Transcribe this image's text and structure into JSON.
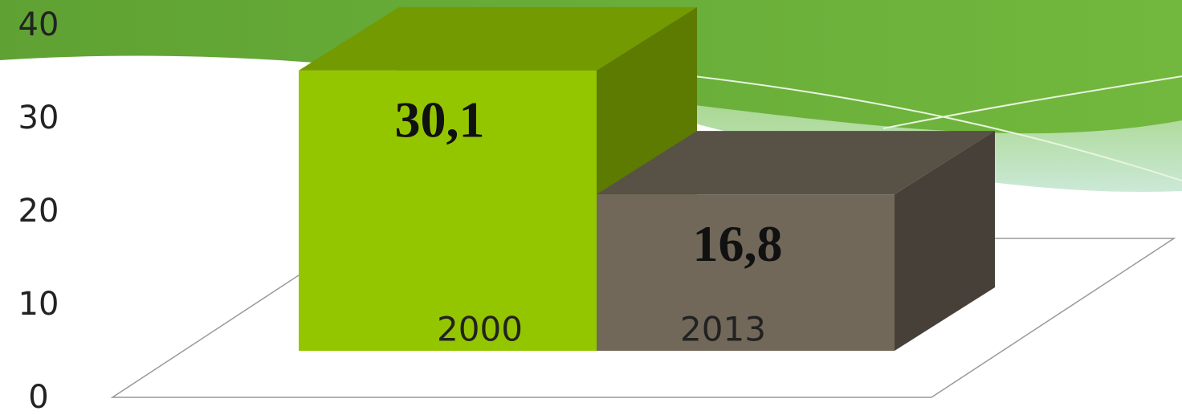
{
  "chart_data": {
    "type": "bar3d",
    "categories": [
      "2000",
      "2013"
    ],
    "values": [
      30.1,
      16.8
    ],
    "value_labels": [
      "30,1",
      "16,8"
    ],
    "colors": [
      "#94c600",
      "#71685a"
    ],
    "ylim": [
      0,
      40
    ],
    "yticks": [
      0,
      10,
      20,
      30,
      40
    ]
  }
}
